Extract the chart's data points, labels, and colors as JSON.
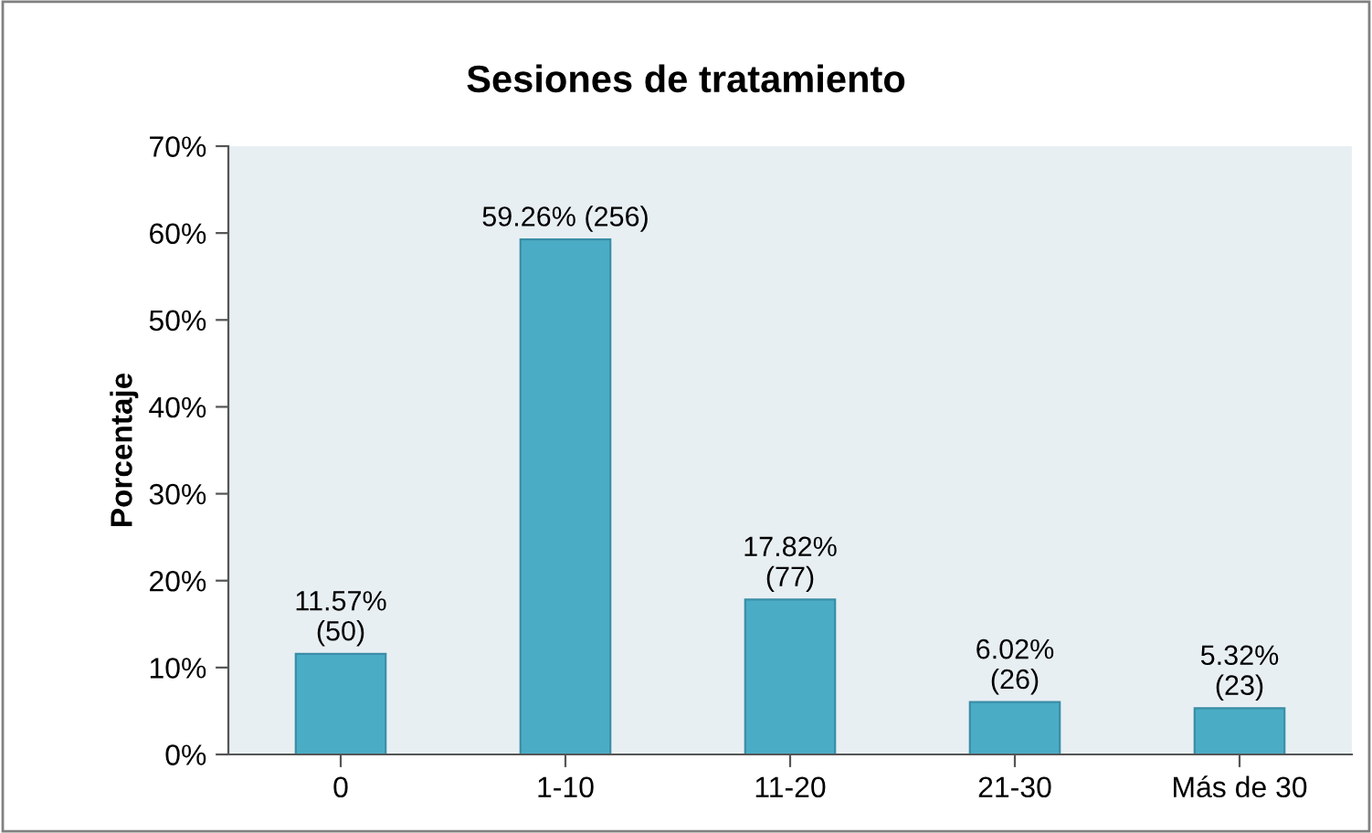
{
  "chart_data": {
    "type": "bar",
    "title": "Sesiones de tratamiento",
    "ylabel": "Porcentaje",
    "categories": [
      "0",
      "1-10",
      "11-20",
      "21-30",
      "Más de 30"
    ],
    "values": [
      11.57,
      59.26,
      17.82,
      6.02,
      5.32
    ],
    "value_labels": [
      "11.57%\n(50)",
      "59.26% (256)",
      "17.82%\n(77)",
      "6.02%\n(26)",
      "5.32%\n(23)"
    ],
    "color": "#4bacc6",
    "ylim": [
      0,
      70
    ],
    "yticks": [
      {
        "value": 0,
        "label": "0%"
      },
      {
        "value": 10,
        "label": "10%"
      },
      {
        "value": 20,
        "label": "20%"
      },
      {
        "value": 30,
        "label": "30%"
      },
      {
        "value": 40,
        "label": "40%"
      },
      {
        "value": 50,
        "label": "50%"
      },
      {
        "value": 60,
        "label": "60%"
      },
      {
        "value": 70,
        "label": "70%"
      }
    ],
    "grid": false
  }
}
